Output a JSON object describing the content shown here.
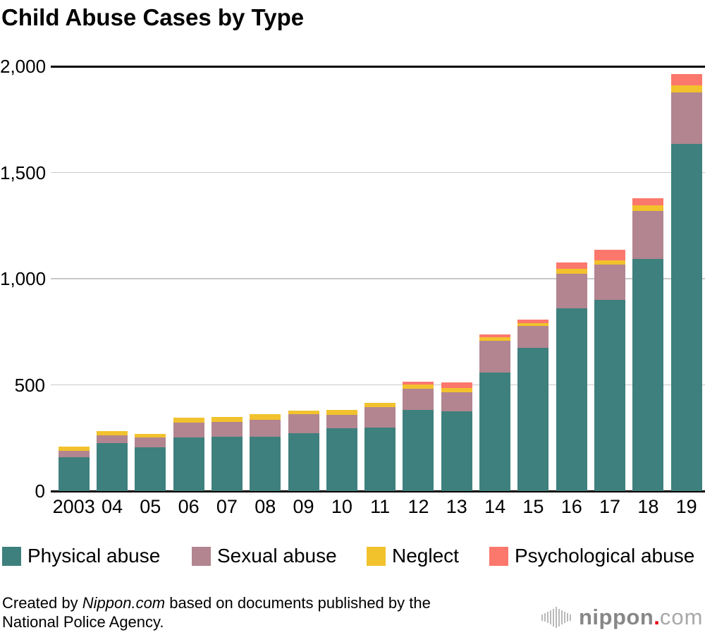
{
  "title": "Child Abuse Cases by Type",
  "chart_data": {
    "type": "bar",
    "stacked": true,
    "title": "Child Abuse Cases by Type",
    "xlabel": "",
    "ylabel": "",
    "ylim": [
      0,
      2000
    ],
    "grid": "horizontal",
    "legend_position": "bottom",
    "categories": [
      "2003",
      "04",
      "05",
      "06",
      "07",
      "08",
      "09",
      "10",
      "11",
      "12",
      "13",
      "14",
      "15",
      "16",
      "17",
      "18",
      "19"
    ],
    "yticks": [
      {
        "label": "0",
        "value": 0
      },
      {
        "label": "500",
        "value": 500
      },
      {
        "label": "1,000",
        "value": 1000
      },
      {
        "label": "1,500",
        "value": 1500
      },
      {
        "label": "2,000",
        "value": 2000
      }
    ],
    "series": [
      {
        "name": "Physical abuse",
        "color": "#3e807d",
        "values": [
          159,
          226,
          205,
          251,
          257,
          256,
          274,
          296,
          300,
          382,
          374,
          559,
          676,
          860,
          900,
          1094,
          1636
        ]
      },
      {
        "name": "Sexual abuse",
        "color": "#b28590",
        "values": [
          30,
          37,
          47,
          70,
          68,
          78,
          89,
          62,
          94,
          100,
          91,
          149,
          103,
          164,
          167,
          224,
          242
        ]
      },
      {
        "name": "Neglect",
        "color": "#f2c22d",
        "values": [
          20,
          20,
          17,
          25,
          25,
          28,
          16,
          24,
          22,
          20,
          20,
          15,
          13,
          22,
          19,
          28,
          34
        ]
      },
      {
        "name": "Psychological abuse",
        "color": "#fc776c",
        "values": [
          0,
          0,
          0,
          0,
          0,
          0,
          0,
          0,
          0,
          14,
          27,
          13,
          17,
          31,
          49,
          33,
          50
        ]
      }
    ]
  },
  "legend": {
    "items": [
      {
        "label": "Physical abuse",
        "color": "#3e807d"
      },
      {
        "label": "Sexual abuse",
        "color": "#b28590"
      },
      {
        "label": "Neglect",
        "color": "#f2c22d"
      },
      {
        "label": "Psychological abuse",
        "color": "#fc776c"
      }
    ]
  },
  "footer": {
    "credit_prefix": "Created by ",
    "credit_source": "Nippon.com",
    "credit_middle": " based on documents published by the",
    "credit_line2": "National Police Agency."
  },
  "logo": {
    "wordmark": "nippon",
    "dot": ".",
    "tld": "com"
  },
  "style": {
    "gridline_color": "#c9c9c9",
    "axis_color": "#000000",
    "background": "#ffffff"
  }
}
